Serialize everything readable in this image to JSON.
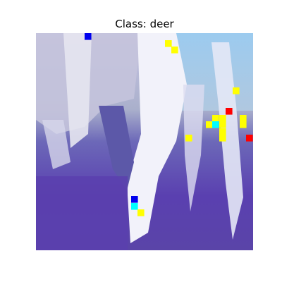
{
  "title": "Class: deer"
}
